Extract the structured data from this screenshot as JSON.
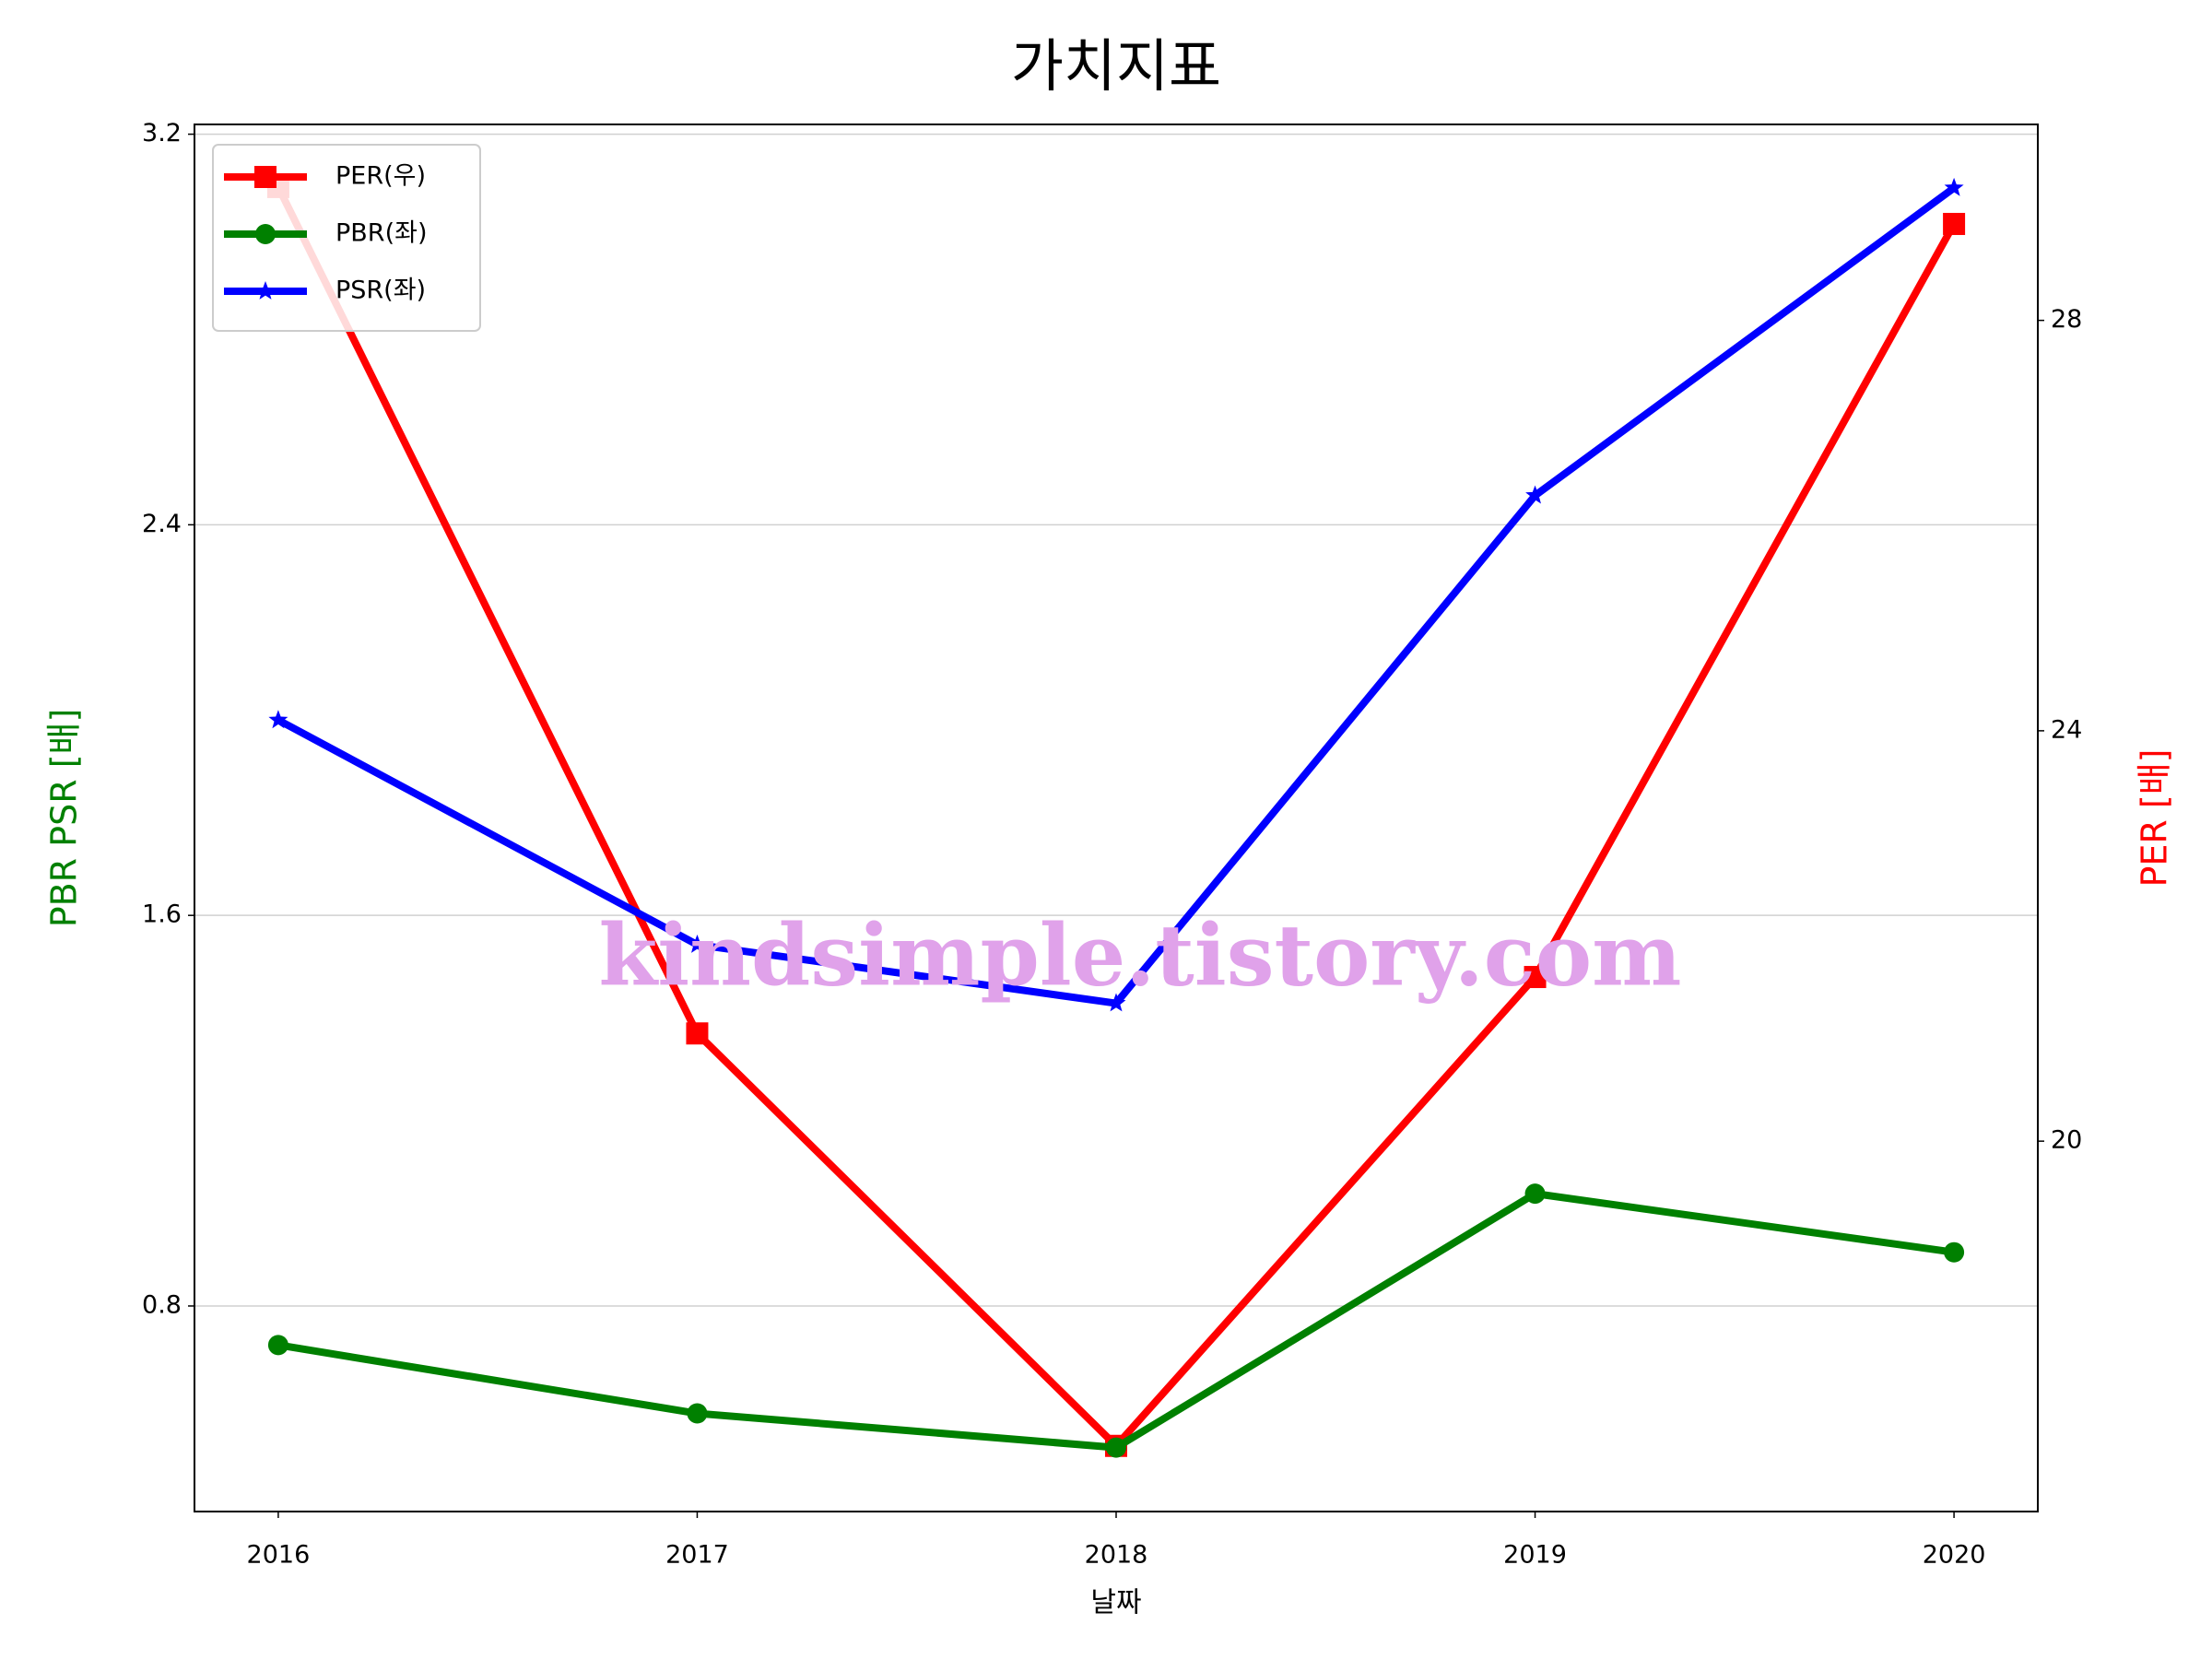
{
  "chart_data": {
    "type": "line",
    "title": "가치지표",
    "x": [
      2016,
      2017,
      2018,
      2019,
      2020
    ],
    "xlim": [
      2015.8,
      2020.2
    ],
    "xticks": [
      2016,
      2017,
      2018,
      2019,
      2020
    ],
    "xlabel": "날짜",
    "ylabel": "PBR PSR [배]",
    "ylabel_color": "#008000",
    "y2label": "PER [배]",
    "y2label_color": "#ff0000",
    "ylim": [
      0.379,
      3.22
    ],
    "yticks": [
      {
        "value": 0.8,
        "label": "0.8"
      },
      {
        "value": 1.6,
        "label": "1.6"
      },
      {
        "value": 2.4,
        "label": "2.4"
      },
      {
        "value": 3.2,
        "label": "3.2"
      }
    ],
    "y2lim": [
      16.39,
      29.91
    ],
    "y2ticks": [
      20,
      24,
      28
    ],
    "grid": true,
    "legend": "upper left",
    "series": [
      {
        "name": "PER(우)",
        "color": "#ff0000",
        "marker": "square",
        "axis": "y2",
        "values": [
          29.3,
          21.05,
          17.03,
          21.6,
          28.94
        ]
      },
      {
        "name": "PBR(좌)",
        "color": "#008000",
        "marker": "circle",
        "values": [
          0.72,
          0.58,
          0.51,
          1.03,
          0.91
        ]
      },
      {
        "name": "PSR(좌)",
        "color": "#0000ff",
        "marker": "star",
        "values": [
          2.0,
          1.54,
          1.42,
          2.46,
          3.09
        ]
      }
    ],
    "annotation": "kindsimple.tistory.com",
    "annotation_color": "#e0a2ea"
  }
}
